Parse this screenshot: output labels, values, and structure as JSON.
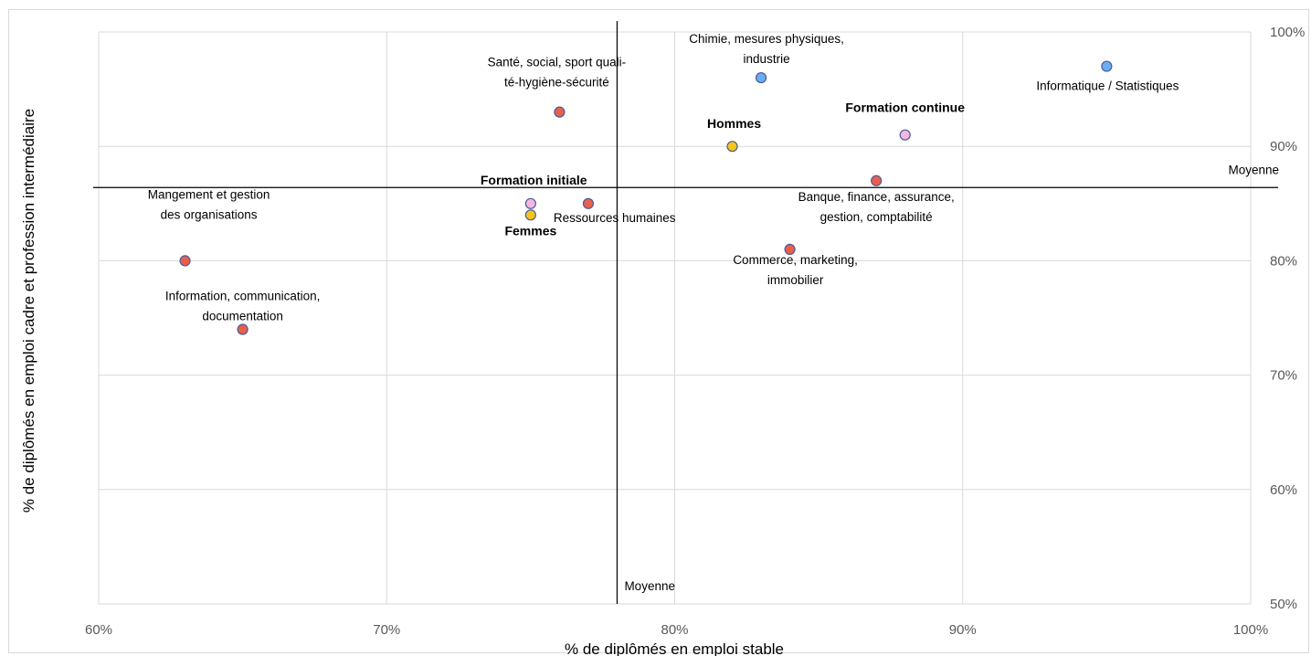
{
  "chart_data": {
    "type": "scatter",
    "xlabel": "% de diplômés en emploi stable",
    "ylabel": "% de diplômés en emploi cadre et profession intermédiaire",
    "xlim": [
      0.6,
      1.0
    ],
    "ylim": [
      0.5,
      1.0
    ],
    "x_ticks": [
      "60%",
      "70%",
      "80%",
      "90%",
      "100%"
    ],
    "y_ticks": [
      "50%",
      "60%",
      "70%",
      "80%",
      "90%",
      "100%"
    ],
    "grid": true,
    "reference_lines": {
      "x_mean": {
        "value": 0.78,
        "label": "Moyenne"
      },
      "y_mean": {
        "value": 0.864,
        "label": "Moyenne"
      }
    },
    "colors": {
      "field_red": "#e8604c",
      "field_blue": "#6aaef0",
      "gender_yellow": "#f5c518",
      "training_pink": "#f2b8e0",
      "marker_edge": "#4a5a9a",
      "grid": "#d9d9d9",
      "axis_text": "#595959"
    },
    "points": [
      {
        "x": 0.76,
        "y": 0.93,
        "lines": [
          "Santé, social, sport quali-",
          "té-hygiène-sécurité"
        ],
        "color": "field_red",
        "bold": false
      },
      {
        "x": 0.83,
        "y": 0.96,
        "lines": [
          "Chimie, mesures physiques,",
          "industrie"
        ],
        "color": "field_blue",
        "bold": false
      },
      {
        "x": 0.95,
        "y": 0.97,
        "lines": [
          "Informatique / Statistiques"
        ],
        "color": "field_blue",
        "bold": false
      },
      {
        "x": 0.82,
        "y": 0.9,
        "lines": [
          "Hommes"
        ],
        "color": "gender_yellow",
        "bold": true
      },
      {
        "x": 0.88,
        "y": 0.91,
        "lines": [
          "Formation continue"
        ],
        "color": "training_pink",
        "bold": true
      },
      {
        "x": 0.87,
        "y": 0.87,
        "lines": [
          "Banque, finance, assurance,",
          "gestion, comptabilité"
        ],
        "color": "field_red",
        "bold": false
      },
      {
        "x": 0.75,
        "y": 0.85,
        "lines": [
          "Formation initiale"
        ],
        "color": "training_pink",
        "bold": true
      },
      {
        "x": 0.77,
        "y": 0.85,
        "lines": [
          "Ressources humaines"
        ],
        "color": "field_red",
        "bold": false
      },
      {
        "x": 0.75,
        "y": 0.84,
        "lines": [
          "Femmes"
        ],
        "color": "gender_yellow",
        "bold": true
      },
      {
        "x": 0.63,
        "y": 0.8,
        "lines": [
          "Mangement  et  gestion",
          "des organisations"
        ],
        "color": "field_red",
        "bold": false
      },
      {
        "x": 0.84,
        "y": 0.81,
        "lines": [
          "Commerce, marketing,",
          "immobilier"
        ],
        "color": "field_red",
        "bold": false
      },
      {
        "x": 0.65,
        "y": 0.74,
        "lines": [
          "Information, communication,",
          "documentation"
        ],
        "color": "field_red",
        "bold": false
      }
    ]
  }
}
